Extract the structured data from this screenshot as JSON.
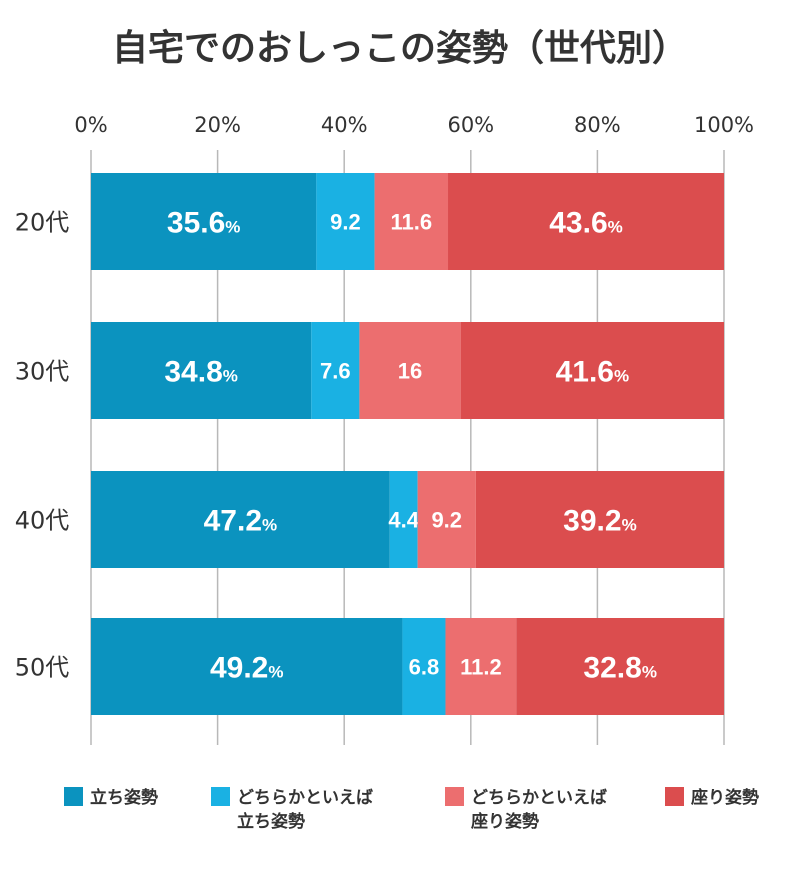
{
  "chart_data": {
    "type": "bar",
    "orientation": "horizontal",
    "stacked": true,
    "title": "自宅でのおしっこの姿勢（世代別）",
    "categories": [
      "20代",
      "30代",
      "40代",
      "50代"
    ],
    "xlim": [
      0,
      100
    ],
    "x_ticks": [
      "0%",
      "20%",
      "40%",
      "60%",
      "80%",
      "100%"
    ],
    "grid": true,
    "legend_position": "bottom",
    "percent_suffix": "%",
    "series": [
      {
        "name": "立ち姿勢",
        "color": "#0b93bf",
        "values": [
          35.6,
          34.8,
          47.2,
          49.2
        ],
        "labels": [
          "35.6",
          "34.8",
          "47.2",
          "49.2"
        ],
        "show_percent": true
      },
      {
        "name": "どちらかといえば立ち姿勢",
        "legend_lines": [
          "どちらかといえば",
          "立ち姿勢"
        ],
        "color": "#1ab1e3",
        "values": [
          9.2,
          7.6,
          4.4,
          6.8
        ],
        "labels": [
          "9.2",
          "7.6",
          "4.4",
          "6.8"
        ],
        "show_percent": false
      },
      {
        "name": "どちらかといえば座り姿勢",
        "legend_lines": [
          "どちらかといえば",
          "座り姿勢"
        ],
        "color": "#ec6e6f",
        "values": [
          11.6,
          16,
          9.2,
          11.2
        ],
        "labels": [
          "11.6",
          "16",
          "9.2",
          "11.2"
        ],
        "show_percent": false
      },
      {
        "name": "座り姿勢",
        "color": "#db4d4e",
        "values": [
          43.6,
          41.6,
          39.2,
          32.8
        ],
        "labels": [
          "43.6",
          "41.6",
          "39.2",
          "32.8"
        ],
        "show_percent": true
      }
    ]
  }
}
